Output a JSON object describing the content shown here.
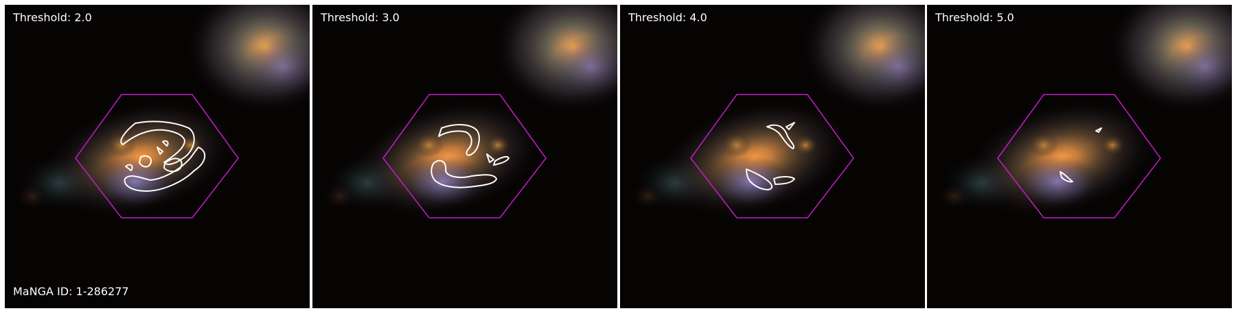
{
  "figure": {
    "panels": [
      {
        "label": "Threshold: 2.0"
      },
      {
        "label": "Threshold: 3.0"
      },
      {
        "label": "Threshold: 4.0"
      },
      {
        "label": "Threshold: 5.0"
      }
    ],
    "galaxy_id": "MaNGA ID: 1-286277"
  },
  "colors": {
    "background": "#060303",
    "hexagon": "#c21ec8",
    "contour": "#ffffff",
    "text": "#ffffff",
    "galaxy_core": "#ffa64d",
    "companion_core": "#ffb050"
  }
}
